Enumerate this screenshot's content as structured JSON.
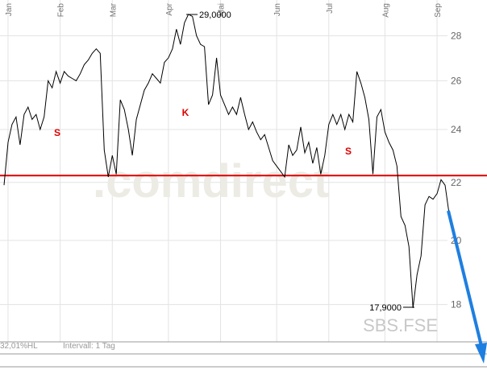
{
  "chart_data": {
    "type": "line",
    "log_scale": true,
    "grid": true,
    "xlim": [
      0,
      110
    ],
    "xticks": [
      {
        "value": 1,
        "label": "Jan"
      },
      {
        "value": 14,
        "label": "Feb"
      },
      {
        "value": 27,
        "label": "Mar"
      },
      {
        "value": 41,
        "label": "Apr"
      },
      {
        "value": 54,
        "label": "Mai"
      },
      {
        "value": 68,
        "label": "Jun"
      },
      {
        "value": 81,
        "label": "Jul"
      },
      {
        "value": 95,
        "label": "Aug"
      },
      {
        "value": 108,
        "label": "Sep"
      }
    ],
    "ylim": [
      16.93,
      29.3
    ],
    "yticks": [
      18,
      20,
      22,
      24,
      26,
      28
    ],
    "series": [
      {
        "color": "#000000",
        "values": [
          21.9,
          23.5,
          24.2,
          24.5,
          23.4,
          24.6,
          24.9,
          24.4,
          24.6,
          24.0,
          24.5,
          26.0,
          25.7,
          26.4,
          25.9,
          26.4,
          26.2,
          26.1,
          26.0,
          26.3,
          26.7,
          26.9,
          27.2,
          27.4,
          27.2,
          23.2,
          22.2,
          23.0,
          22.3,
          25.2,
          24.8,
          24.0,
          23.0,
          24.4,
          25.0,
          25.6,
          25.9,
          26.3,
          26.1,
          25.9,
          26.8,
          27.0,
          27.4,
          28.3,
          27.6,
          28.6,
          29.0,
          28.9,
          28.0,
          27.6,
          27.5,
          25.0,
          25.4,
          27.0,
          25.4,
          25.0,
          24.6,
          24.9,
          24.6,
          25.3,
          24.6,
          24.0,
          24.3,
          23.9,
          23.6,
          23.8,
          23.3,
          22.8,
          22.6,
          22.4,
          22.2,
          23.4,
          23.0,
          23.2,
          24.1,
          23.1,
          23.5,
          22.7,
          23.3,
          22.3,
          23.0,
          24.2,
          24.6,
          24.2,
          24.6,
          24.0,
          24.6,
          24.3,
          26.4,
          25.9,
          25.3,
          24.4,
          22.3,
          24.5,
          24.8,
          23.9,
          23.5,
          23.2,
          22.6,
          20.8,
          20.5,
          19.8,
          17.9,
          18.9,
          19.5,
          21.2,
          21.5,
          21.4,
          21.6,
          22.1,
          21.9,
          20.9
        ]
      }
    ],
    "reference_line": {
      "value": 22.25,
      "color": "#dd0000"
    },
    "annotations": [
      "29,0000",
      "17,9000",
      "S",
      "K",
      "S"
    ],
    "watermark": ".comdirect",
    "symbol": "SBS.FSE",
    "footer": [
      "32,01%HL",
      "Intervall: 1 Tag"
    ]
  }
}
